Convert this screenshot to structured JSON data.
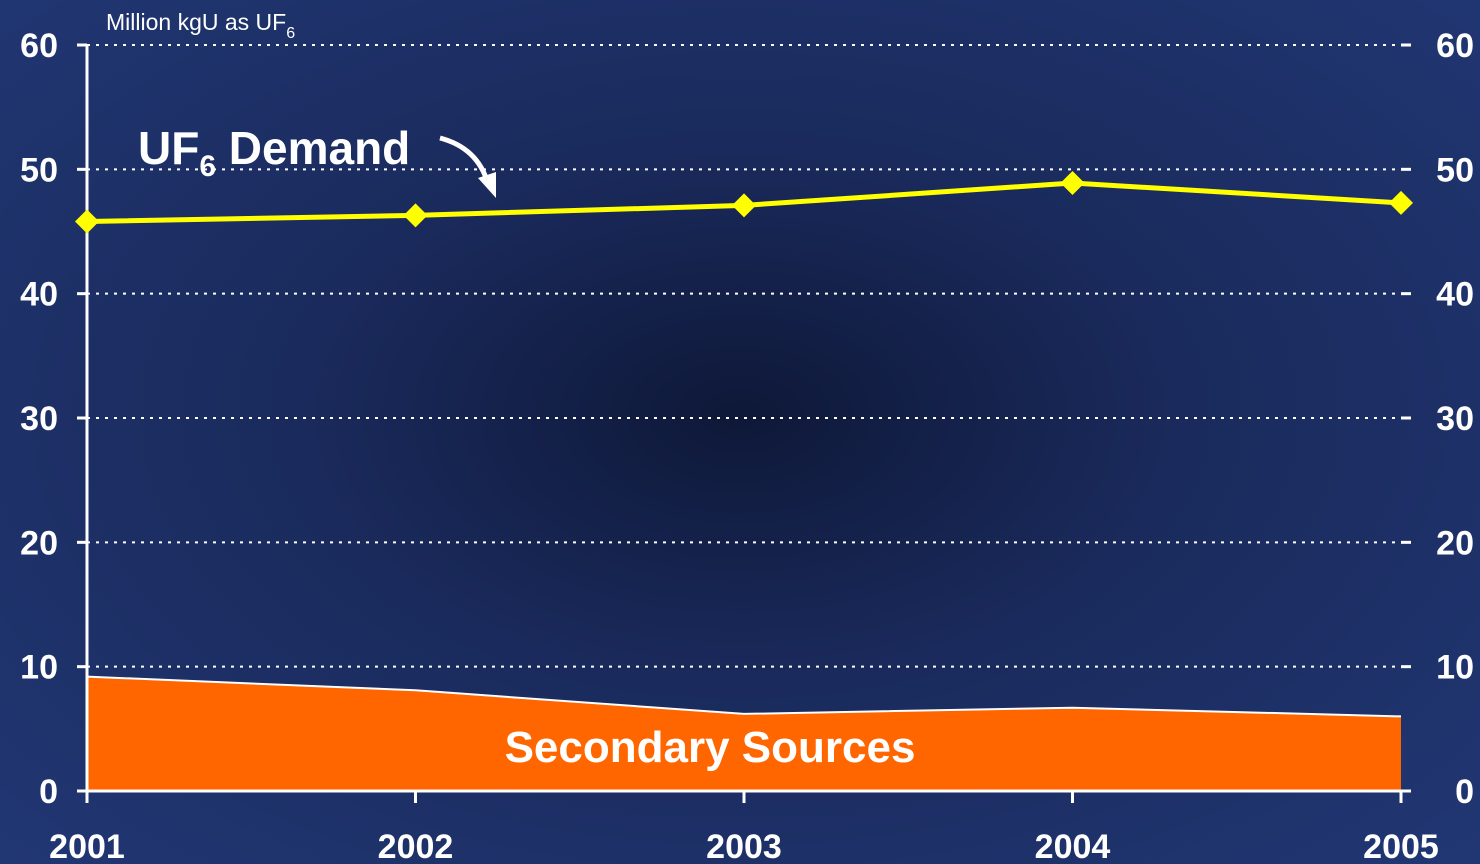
{
  "chart_data": {
    "type": "line",
    "x": [
      2001,
      2002,
      2003,
      2004,
      2005
    ],
    "series": [
      {
        "name": "UF6 Demand",
        "label_main": "UF",
        "label_sub": "6",
        "label_rest": " Demand",
        "kind": "line",
        "color": "#ffff00",
        "marker": "diamond",
        "values": [
          45.8,
          46.3,
          47.1,
          48.9,
          47.3
        ]
      },
      {
        "name": "Secondary Sources",
        "kind": "area",
        "color": "#ff6600",
        "edge_color": "#ffffff",
        "values": [
          9.2,
          8.1,
          6.2,
          6.7,
          6.0
        ]
      }
    ],
    "unit_label_main": "Million kgU as UF",
    "unit_label_sub": "6",
    "ylim": [
      0,
      60
    ],
    "yticks": [
      0,
      10,
      20,
      30,
      40,
      50,
      60
    ],
    "xticks": [
      "2001",
      "2002",
      "2003",
      "2004",
      "2005"
    ],
    "grid": true,
    "right_axis_ticks": true
  }
}
